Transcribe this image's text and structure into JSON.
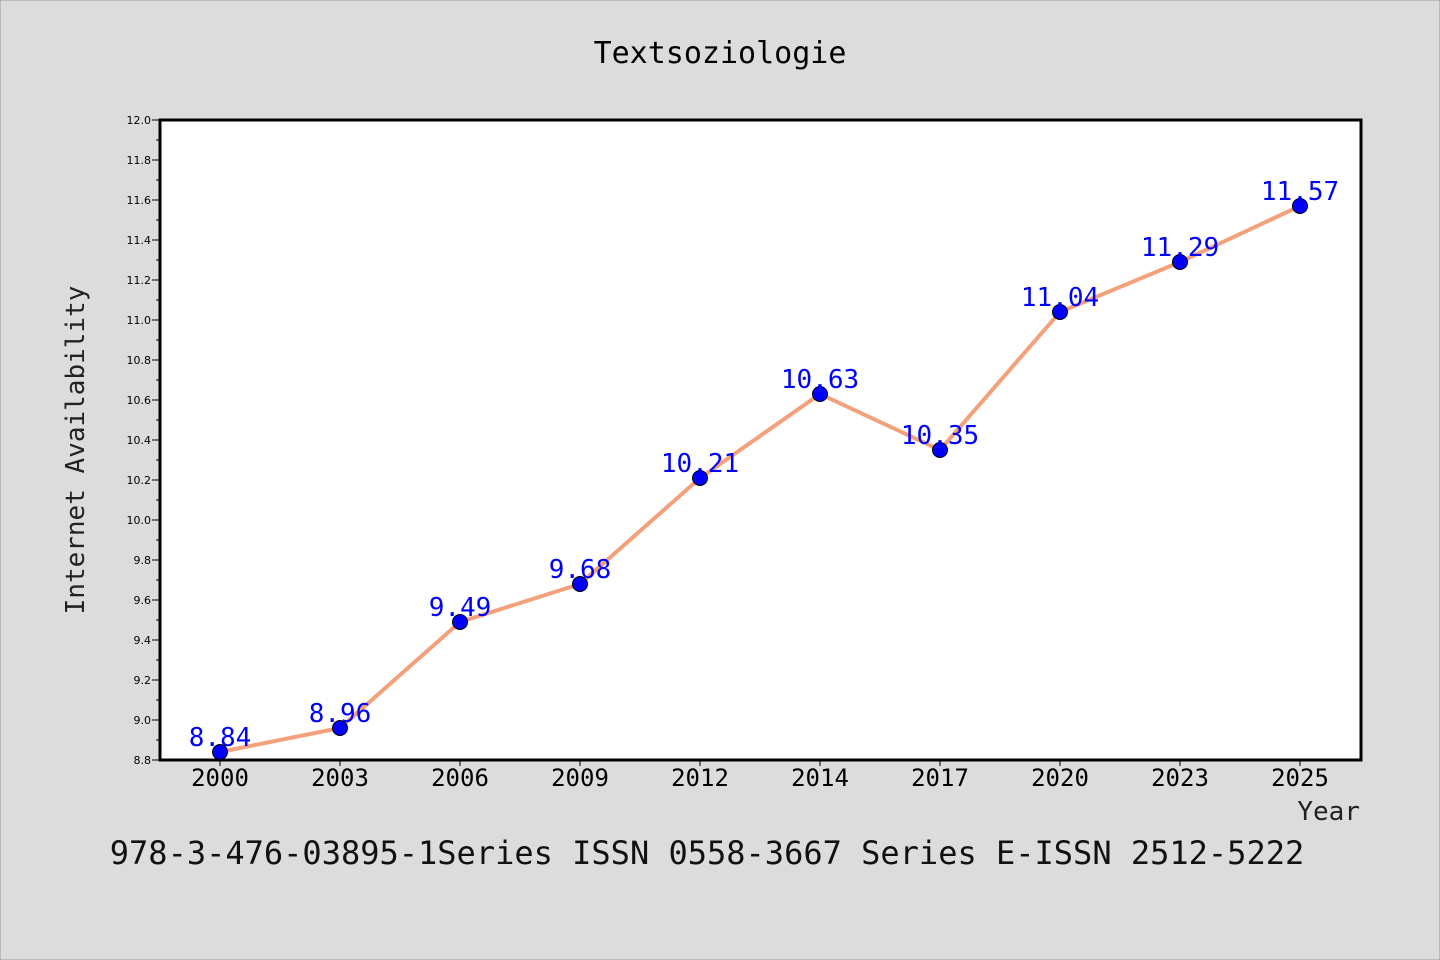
{
  "chart_data": {
    "type": "line",
    "title": "Textsoziologie",
    "xlabel": "Year",
    "ylabel": "Internet Availability",
    "categories": [
      "2000",
      "2003",
      "2006",
      "2009",
      "2012",
      "2014",
      "2017",
      "2020",
      "2023",
      "2025"
    ],
    "series": [
      {
        "values": [
          8.84,
          8.96,
          9.49,
          9.68,
          10.21,
          10.63,
          10.35,
          11.04,
          11.29,
          11.57
        ],
        "line_color": "#f4a07a",
        "marker_color": "#0000ff"
      }
    ],
    "data_labels": [
      "8.84",
      "8.96",
      "9.49",
      "9.68",
      "10.21",
      "10.63",
      "10.35",
      "11.04",
      "11.29",
      "11.57"
    ],
    "ylim": [
      8.8,
      12.0
    ],
    "y_ticks": [
      "8.8",
      "9.0",
      "9.2",
      "9.4",
      "9.6",
      "9.8",
      "10.0",
      "10.2",
      "10.4",
      "10.6",
      "10.8",
      "11.0",
      "11.2",
      "11.4",
      "11.6",
      "11.8",
      "12.0"
    ],
    "grid": false,
    "legend": "none"
  },
  "footer": {
    "text": "978-3-476-03895-1Series ISSN 0558-3667 Series E-ISSN 2512-5222"
  },
  "colors": {
    "background": "#dcdcdc",
    "plot_background": "#ffffff",
    "line": "#f4a07a",
    "marker": "#0000ff",
    "data_label": "#0000ff"
  }
}
